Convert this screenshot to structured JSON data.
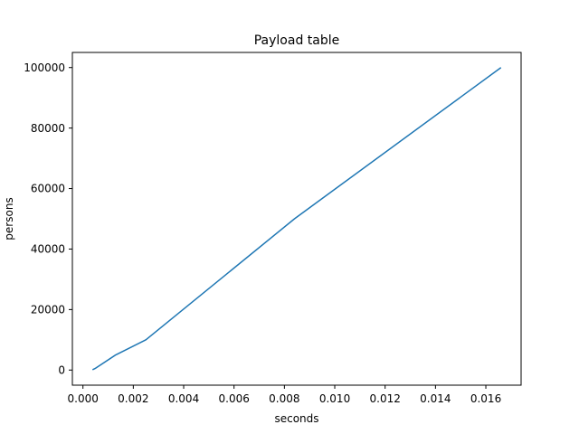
{
  "chart_data": {
    "type": "line",
    "title": "Payload table",
    "xlabel": "seconds",
    "ylabel": "persons",
    "xlim": [
      -0.00042,
      0.0174
    ],
    "ylim": [
      -5000,
      105000
    ],
    "x_ticks": [
      0.0,
      0.002,
      0.004,
      0.006,
      0.008,
      0.01,
      0.012,
      0.014,
      0.016
    ],
    "x_tick_labels": [
      "0.000",
      "0.002",
      "0.004",
      "0.006",
      "0.008",
      "0.010",
      "0.012",
      "0.014",
      "0.016"
    ],
    "y_ticks": [
      0,
      20000,
      40000,
      60000,
      80000,
      100000
    ],
    "y_tick_labels": [
      "0",
      "20000",
      "40000",
      "60000",
      "80000",
      "100000"
    ],
    "grid": false,
    "series": [
      {
        "color": "#1f77b4",
        "x": [
          0.00038,
          0.00048,
          0.0013,
          0.0025,
          0.0084,
          0.0166
        ],
        "y": [
          100,
          500,
          5000,
          10000,
          50000,
          100000
        ]
      }
    ]
  }
}
